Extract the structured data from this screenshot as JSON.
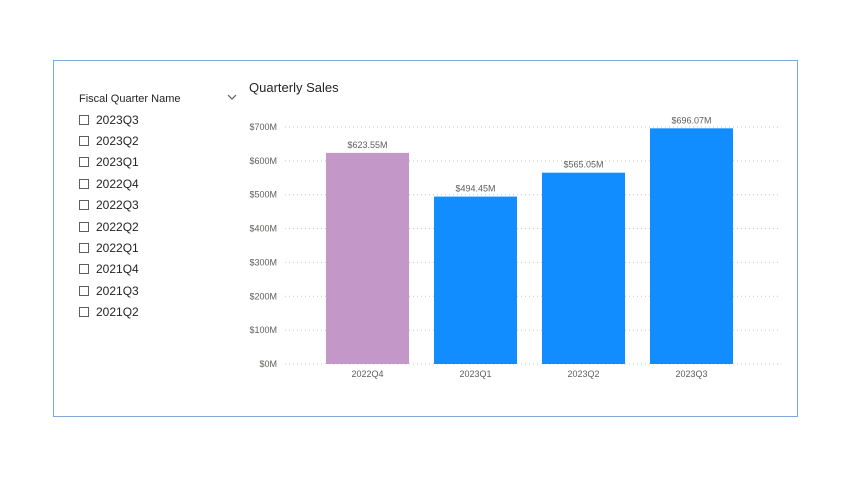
{
  "slicer": {
    "title": "Fiscal Quarter Name",
    "items": [
      {
        "label": "2023Q3",
        "checked": false
      },
      {
        "label": "2023Q2",
        "checked": false
      },
      {
        "label": "2023Q1",
        "checked": false
      },
      {
        "label": "2022Q4",
        "checked": false
      },
      {
        "label": "2022Q3",
        "checked": false
      },
      {
        "label": "2022Q2",
        "checked": false
      },
      {
        "label": "2022Q1",
        "checked": false
      },
      {
        "label": "2021Q4",
        "checked": false
      },
      {
        "label": "2021Q3",
        "checked": false
      },
      {
        "label": "2021Q2",
        "checked": false
      }
    ]
  },
  "chart_data": {
    "type": "bar",
    "title": "Quarterly Sales",
    "categories": [
      "2022Q4",
      "2023Q1",
      "2023Q2",
      "2023Q3"
    ],
    "values": [
      623.55,
      494.45,
      565.05,
      696.07
    ],
    "data_labels": [
      "$623.55M",
      "$494.45M",
      "$565.05M",
      "$696.07M"
    ],
    "bar_colors": [
      "#c497c9",
      "#118dff",
      "#118dff",
      "#118dff"
    ],
    "ylim": [
      0,
      700
    ],
    "yticks": [
      0,
      100,
      200,
      300,
      400,
      500,
      600,
      700
    ],
    "ytick_labels": [
      "$0M",
      "$100M",
      "$200M",
      "$300M",
      "$400M",
      "$500M",
      "$600M",
      "$700M"
    ],
    "xlabel": "",
    "ylabel": "",
    "grid": true
  }
}
